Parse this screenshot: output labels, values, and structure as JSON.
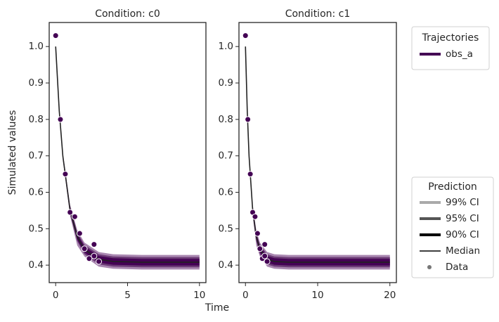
{
  "figure": {
    "xlabel": "Time",
    "ylabel": "Simulated values",
    "legends": [
      {
        "title": "Trajectories",
        "entries": [
          {
            "label": "obs_a",
            "color": "#440154",
            "kind": "line",
            "width": 4
          }
        ]
      },
      {
        "title": "Prediction",
        "entries": [
          {
            "label": "99% CI",
            "color": "#aaaaaa",
            "kind": "line",
            "width": 4
          },
          {
            "label": "95% CI",
            "color": "#555555",
            "kind": "line",
            "width": 4
          },
          {
            "label": "90% CI",
            "color": "#000000",
            "kind": "line",
            "width": 4
          },
          {
            "label": "Median",
            "color": "#000000",
            "kind": "line",
            "width": 1.5
          },
          {
            "label": "Data",
            "color": "#777777",
            "kind": "dot",
            "width": 3
          }
        ]
      }
    ]
  },
  "chart_data": [
    {
      "type": "line",
      "title": "Condition: c0",
      "xlim": [
        -0.45,
        10.45
      ],
      "xticks": [
        0,
        5,
        10
      ],
      "ylim": [
        0.352,
        1.066
      ],
      "yticks": [
        0.4,
        0.5,
        0.6,
        0.7,
        0.8,
        0.9,
        {
          "value": 1,
          "label": "1.0"
        }
      ],
      "x": [
        0,
        0.25,
        0.5,
        1,
        1.5,
        2,
        3,
        4,
        6,
        10
      ],
      "median": {
        "name": "Median",
        "color": "#222222",
        "values": [
          1.0,
          0.823,
          0.699,
          0.551,
          0.478,
          0.443,
          0.416,
          0.41,
          0.408,
          0.408
        ]
      },
      "bands": [
        {
          "name": "99% CI",
          "color": "#a987b0",
          "lower": [
            1.0,
            0.817,
            0.689,
            0.536,
            0.454,
            0.424,
            0.396,
            0.39,
            0.388,
            0.388
          ],
          "upper": [
            1.0,
            0.829,
            0.709,
            0.566,
            0.496,
            0.462,
            0.436,
            0.43,
            0.428,
            0.428
          ]
        },
        {
          "name": "95% CI",
          "color": "#6b3a75",
          "lower": [
            1.0,
            0.819,
            0.692,
            0.54,
            0.466,
            0.43,
            0.402,
            0.396,
            0.394,
            0.394
          ],
          "upper": [
            1.0,
            0.827,
            0.706,
            0.562,
            0.49,
            0.456,
            0.43,
            0.424,
            0.422,
            0.422
          ]
        },
        {
          "name": "90% CI",
          "color": "#440154",
          "lower": [
            1.0,
            0.82,
            0.694,
            0.544,
            0.47,
            0.435,
            0.407,
            0.401,
            0.399,
            0.399
          ],
          "upper": [
            1.0,
            0.826,
            0.704,
            0.558,
            0.486,
            0.451,
            0.425,
            0.419,
            0.417,
            0.417
          ]
        }
      ],
      "points": {
        "name": "Data",
        "color": "#440154",
        "x": [
          0,
          0.33,
          0.67,
          1,
          1.33,
          1.67,
          2,
          2.33,
          2.67,
          2.67,
          3
        ],
        "values": [
          1.03,
          0.8,
          0.65,
          0.545,
          0.533,
          0.487,
          0.445,
          0.418,
          0.457,
          0.425,
          0.41
        ]
      }
    },
    {
      "type": "line",
      "title": "Condition: c1",
      "xlim": [
        -0.9,
        20.9
      ],
      "xticks": [
        0,
        10,
        20
      ],
      "ylim": [
        0.352,
        1.066
      ],
      "yticks": [
        0.4,
        0.5,
        0.6,
        0.7,
        0.8,
        0.9,
        {
          "value": 1,
          "label": "1.0"
        }
      ],
      "x": [
        0,
        0.25,
        0.5,
        1,
        1.5,
        2,
        3,
        4,
        6,
        10,
        20
      ],
      "median": {
        "name": "Median",
        "color": "#222222",
        "values": [
          1.0,
          0.823,
          0.699,
          0.551,
          0.478,
          0.443,
          0.416,
          0.41,
          0.408,
          0.408,
          0.408
        ]
      },
      "bands": [
        {
          "name": "99% CI",
          "color": "#a987b0",
          "lower": [
            1.0,
            0.817,
            0.689,
            0.536,
            0.454,
            0.424,
            0.396,
            0.39,
            0.388,
            0.388,
            0.388
          ],
          "upper": [
            1.0,
            0.829,
            0.709,
            0.566,
            0.496,
            0.462,
            0.436,
            0.43,
            0.428,
            0.428,
            0.428
          ]
        },
        {
          "name": "95% CI",
          "color": "#6b3a75",
          "lower": [
            1.0,
            0.819,
            0.692,
            0.54,
            0.466,
            0.43,
            0.402,
            0.396,
            0.394,
            0.394,
            0.394
          ],
          "upper": [
            1.0,
            0.827,
            0.706,
            0.562,
            0.49,
            0.456,
            0.43,
            0.424,
            0.422,
            0.422,
            0.422
          ]
        },
        {
          "name": "90% CI",
          "color": "#440154",
          "lower": [
            1.0,
            0.82,
            0.694,
            0.544,
            0.47,
            0.435,
            0.407,
            0.401,
            0.399,
            0.399,
            0.399
          ],
          "upper": [
            1.0,
            0.826,
            0.704,
            0.558,
            0.486,
            0.451,
            0.425,
            0.419,
            0.417,
            0.417,
            0.417
          ]
        }
      ],
      "points": {
        "name": "Data",
        "color": "#440154",
        "x": [
          0,
          0.33,
          0.67,
          1,
          1.33,
          1.67,
          2,
          2.33,
          2.67,
          2.67,
          3
        ],
        "values": [
          1.03,
          0.8,
          0.65,
          0.545,
          0.533,
          0.487,
          0.445,
          0.418,
          0.457,
          0.425,
          0.41
        ]
      }
    }
  ]
}
